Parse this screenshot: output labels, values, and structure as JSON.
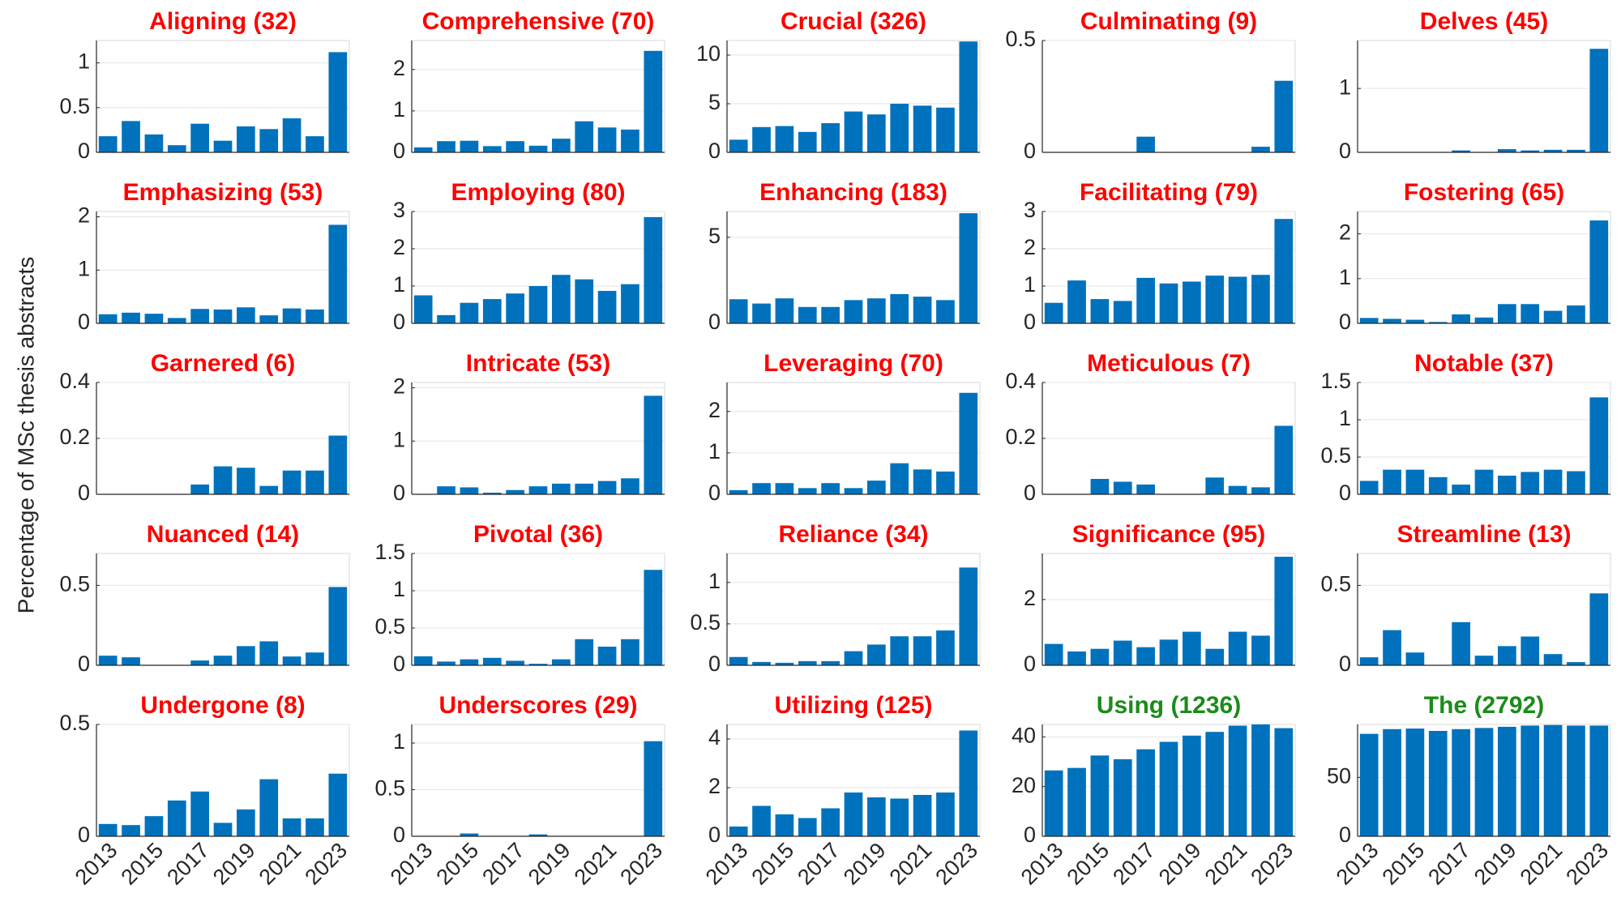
{
  "ylabel": "Percentage of MSc thesis abstracts",
  "chart_data": [
    {
      "type": "bar",
      "title": "Aligning (32)",
      "title_color": "#ff0000",
      "color": "#0072bd",
      "grid": true,
      "ylim": [
        0,
        1.25
      ],
      "yticks": [
        0,
        0.5,
        1
      ],
      "values": [
        0.18,
        0.35,
        0.2,
        0.08,
        0.32,
        0.13,
        0.29,
        0.26,
        0.38,
        0.18,
        1.12
      ]
    },
    {
      "type": "bar",
      "title": "Comprehensive (70)",
      "title_color": "#ff0000",
      "color": "#0072bd",
      "grid": true,
      "ylim": [
        0,
        2.7
      ],
      "yticks": [
        0,
        1,
        2
      ],
      "values": [
        0.12,
        0.27,
        0.28,
        0.15,
        0.27,
        0.16,
        0.33,
        0.75,
        0.6,
        0.55,
        2.45
      ]
    },
    {
      "type": "bar",
      "title": "Crucial (326)",
      "title_color": "#ff0000",
      "color": "#0072bd",
      "grid": true,
      "ylim": [
        0,
        11.5
      ],
      "yticks": [
        0,
        5,
        10
      ],
      "values": [
        1.3,
        2.6,
        2.7,
        2.1,
        3.0,
        4.2,
        3.9,
        5.0,
        4.8,
        4.6,
        11.4
      ]
    },
    {
      "type": "bar",
      "title": "Culminating (9)",
      "title_color": "#ff0000",
      "color": "#0072bd",
      "grid": true,
      "ylim": [
        0,
        0.5
      ],
      "yticks": [
        0,
        0.5
      ],
      "values": [
        0,
        0,
        0,
        0,
        0.07,
        0,
        0,
        0,
        0,
        0.025,
        0.32
      ]
    },
    {
      "type": "bar",
      "title": "Delves (45)",
      "title_color": "#ff0000",
      "color": "#0072bd",
      "grid": true,
      "ylim": [
        0,
        1.75
      ],
      "yticks": [
        0,
        1
      ],
      "values": [
        0,
        0,
        0,
        0,
        0.03,
        0,
        0.05,
        0.03,
        0.04,
        0.04,
        1.62
      ]
    },
    {
      "type": "bar",
      "title": "Emphasizing (53)",
      "title_color": "#ff0000",
      "color": "#0072bd",
      "grid": true,
      "ylim": [
        0,
        2.1
      ],
      "yticks": [
        0,
        1,
        2
      ],
      "values": [
        0.17,
        0.2,
        0.18,
        0.1,
        0.27,
        0.26,
        0.3,
        0.15,
        0.28,
        0.26,
        1.85
      ]
    },
    {
      "type": "bar",
      "title": "Employing (80)",
      "title_color": "#ff0000",
      "color": "#0072bd",
      "grid": true,
      "ylim": [
        0,
        3
      ],
      "yticks": [
        0,
        1,
        2,
        3
      ],
      "values": [
        0.75,
        0.22,
        0.55,
        0.65,
        0.8,
        1.0,
        1.3,
        1.18,
        0.87,
        1.05,
        2.85
      ]
    },
    {
      "type": "bar",
      "title": "Enhancing (183)",
      "title_color": "#ff0000",
      "color": "#0072bd",
      "grid": true,
      "ylim": [
        0,
        6.5
      ],
      "yticks": [
        0,
        5
      ],
      "values": [
        1.4,
        1.15,
        1.45,
        0.95,
        0.95,
        1.35,
        1.45,
        1.7,
        1.55,
        1.35,
        6.4
      ]
    },
    {
      "type": "bar",
      "title": "Facilitating (79)",
      "title_color": "#ff0000",
      "color": "#0072bd",
      "grid": true,
      "ylim": [
        0,
        3
      ],
      "yticks": [
        0,
        1,
        2,
        3
      ],
      "values": [
        0.55,
        1.15,
        0.65,
        0.6,
        1.22,
        1.07,
        1.12,
        1.28,
        1.25,
        1.3,
        2.8
      ]
    },
    {
      "type": "bar",
      "title": "Fostering (65)",
      "title_color": "#ff0000",
      "color": "#0072bd",
      "grid": true,
      "ylim": [
        0,
        2.5
      ],
      "yticks": [
        0,
        1,
        2
      ],
      "values": [
        0.12,
        0.1,
        0.08,
        0.03,
        0.2,
        0.13,
        0.43,
        0.43,
        0.28,
        0.4,
        2.3
      ]
    },
    {
      "type": "bar",
      "title": "Garnered (6)",
      "title_color": "#ff0000",
      "color": "#0072bd",
      "grid": true,
      "ylim": [
        0,
        0.4
      ],
      "yticks": [
        0,
        0.2,
        0.4
      ],
      "values": [
        0,
        0,
        0,
        0,
        0.035,
        0.1,
        0.095,
        0.03,
        0.085,
        0.085,
        0.21
      ]
    },
    {
      "type": "bar",
      "title": "Intricate (53)",
      "title_color": "#ff0000",
      "color": "#0072bd",
      "grid": true,
      "ylim": [
        0,
        2.1
      ],
      "yticks": [
        0,
        1,
        2
      ],
      "values": [
        0,
        0.15,
        0.13,
        0.03,
        0.08,
        0.15,
        0.2,
        0.2,
        0.25,
        0.3,
        1.85
      ]
    },
    {
      "type": "bar",
      "title": "Leveraging (70)",
      "title_color": "#ff0000",
      "color": "#0072bd",
      "grid": true,
      "ylim": [
        0,
        2.7
      ],
      "yticks": [
        0,
        1,
        2
      ],
      "values": [
        0.1,
        0.27,
        0.27,
        0.15,
        0.27,
        0.15,
        0.33,
        0.75,
        0.6,
        0.55,
        2.45
      ]
    },
    {
      "type": "bar",
      "title": "Meticulous (7)",
      "title_color": "#ff0000",
      "color": "#0072bd",
      "grid": true,
      "ylim": [
        0,
        0.4
      ],
      "yticks": [
        0,
        0.2,
        0.4
      ],
      "values": [
        0,
        0,
        0.055,
        0.045,
        0.035,
        0,
        0,
        0.06,
        0.03,
        0.025,
        0.245
      ]
    },
    {
      "type": "bar",
      "title": "Notable (37)",
      "title_color": "#ff0000",
      "color": "#0072bd",
      "grid": true,
      "ylim": [
        0,
        1.5
      ],
      "yticks": [
        0,
        0.5,
        1,
        1.5
      ],
      "values": [
        0.18,
        0.33,
        0.33,
        0.23,
        0.13,
        0.33,
        0.25,
        0.3,
        0.33,
        0.31,
        1.3
      ]
    },
    {
      "type": "bar",
      "title": "Nuanced (14)",
      "title_color": "#ff0000",
      "color": "#0072bd",
      "grid": true,
      "ylim": [
        0,
        0.7
      ],
      "yticks": [
        0,
        0.5
      ],
      "values": [
        0.06,
        0.05,
        0,
        0,
        0.03,
        0.06,
        0.12,
        0.15,
        0.055,
        0.08,
        0.49
      ]
    },
    {
      "type": "bar",
      "title": "Pivotal (36)",
      "title_color": "#ff0000",
      "color": "#0072bd",
      "grid": true,
      "ylim": [
        0,
        1.5
      ],
      "yticks": [
        0,
        0.5,
        1,
        1.5
      ],
      "values": [
        0.12,
        0.05,
        0.08,
        0.1,
        0.06,
        0.02,
        0.08,
        0.35,
        0.25,
        0.35,
        1.28
      ]
    },
    {
      "type": "bar",
      "title": "Reliance (34)",
      "title_color": "#ff0000",
      "color": "#0072bd",
      "grid": true,
      "ylim": [
        0,
        1.35
      ],
      "yticks": [
        0,
        0.5,
        1
      ],
      "values": [
        0.1,
        0.04,
        0.03,
        0.05,
        0.05,
        0.17,
        0.25,
        0.35,
        0.35,
        0.42,
        1.18
      ]
    },
    {
      "type": "bar",
      "title": "Significance (95)",
      "title_color": "#ff0000",
      "color": "#0072bd",
      "grid": true,
      "ylim": [
        0,
        3.4
      ],
      "yticks": [
        0,
        2
      ],
      "values": [
        0.65,
        0.42,
        0.5,
        0.75,
        0.55,
        0.78,
        1.02,
        0.5,
        1.02,
        0.9,
        3.3
      ]
    },
    {
      "type": "bar",
      "title": "Streamline (13)",
      "title_color": "#ff0000",
      "color": "#0072bd",
      "grid": true,
      "ylim": [
        0,
        0.7
      ],
      "yticks": [
        0,
        0.5
      ],
      "values": [
        0.05,
        0.22,
        0.08,
        0,
        0.27,
        0.06,
        0.12,
        0.18,
        0.07,
        0.02,
        0.45
      ]
    },
    {
      "type": "bar",
      "title": "Undergone (8)",
      "title_color": "#ff0000",
      "color": "#0072bd",
      "grid": true,
      "ylim": [
        0,
        0.5
      ],
      "yticks": [
        0,
        0.5
      ],
      "categories": [
        "2013",
        null,
        "2015",
        null,
        "2017",
        null,
        "2019",
        null,
        "2021",
        null,
        "2023"
      ],
      "values": [
        0.055,
        0.05,
        0.09,
        0.16,
        0.2,
        0.06,
        0.12,
        0.255,
        0.08,
        0.08,
        0.28
      ]
    },
    {
      "type": "bar",
      "title": "Underscores (29)",
      "title_color": "#ff0000",
      "color": "#0072bd",
      "grid": true,
      "ylim": [
        0,
        1.2
      ],
      "yticks": [
        0,
        0.5,
        1
      ],
      "categories": [
        "2013",
        null,
        "2015",
        null,
        "2017",
        null,
        "2019",
        null,
        "2021",
        null,
        "2023"
      ],
      "values": [
        0,
        0,
        0.03,
        0,
        0,
        0.02,
        0,
        0,
        0,
        0,
        1.02
      ]
    },
    {
      "type": "bar",
      "title": "Utilizing (125)",
      "title_color": "#ff0000",
      "color": "#0072bd",
      "grid": true,
      "ylim": [
        0,
        4.6
      ],
      "yticks": [
        0,
        2,
        4
      ],
      "categories": [
        "2013",
        null,
        "2015",
        null,
        "2017",
        null,
        "2019",
        null,
        "2021",
        null,
        "2023"
      ],
      "values": [
        0.4,
        1.25,
        0.9,
        0.75,
        1.15,
        1.8,
        1.6,
        1.55,
        1.7,
        1.8,
        4.35
      ]
    },
    {
      "type": "bar",
      "title": "Using (1236)",
      "title_color": "#1a8c1a",
      "color": "#0072bd",
      "grid": true,
      "ylim": [
        0,
        45
      ],
      "yticks": [
        0,
        20,
        40
      ],
      "categories": [
        "2013",
        null,
        "2015",
        null,
        "2017",
        null,
        "2019",
        null,
        "2021",
        null,
        "2023"
      ],
      "values": [
        26.5,
        27.5,
        32.5,
        31,
        35,
        38,
        40.5,
        42,
        44.5,
        45,
        43.5
      ]
    },
    {
      "type": "bar",
      "title": "The (2792)",
      "title_color": "#1a8c1a",
      "color": "#0072bd",
      "grid": true,
      "ylim": [
        0,
        95
      ],
      "yticks": [
        0,
        50
      ],
      "categories": [
        "2013",
        null,
        "2015",
        null,
        "2017",
        null,
        "2019",
        null,
        "2021",
        null,
        "2023"
      ],
      "values": [
        87,
        91,
        91.5,
        89.5,
        91,
        92,
        93,
        94,
        94.5,
        94,
        94
      ]
    }
  ]
}
